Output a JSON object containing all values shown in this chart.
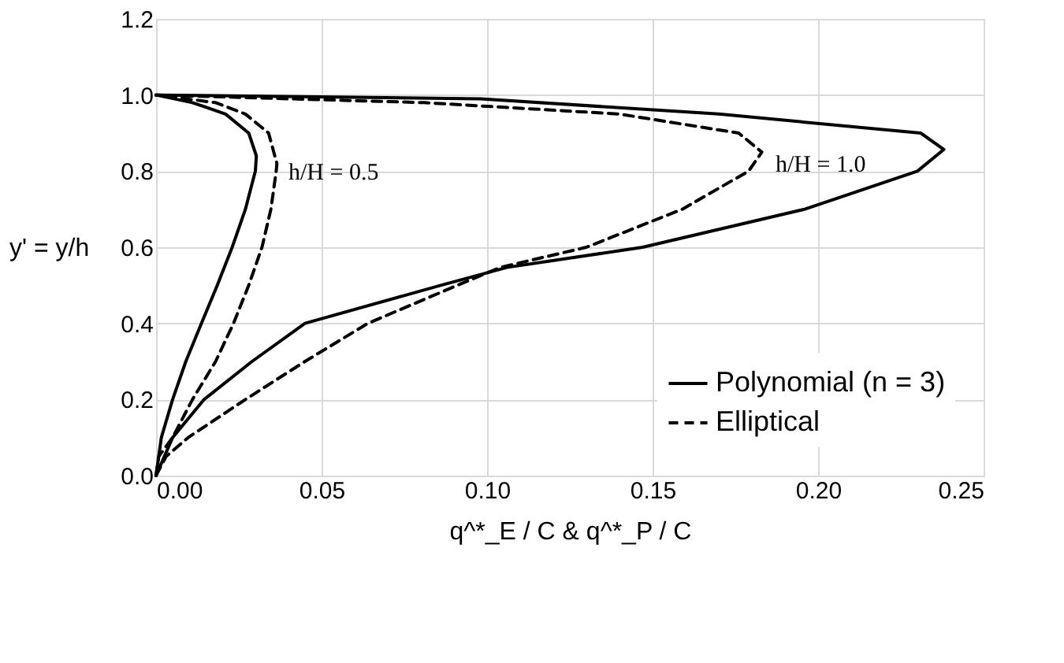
{
  "chart_data": {
    "type": "line",
    "xlabel": "q^*_E / C & q^*_P / C",
    "ylabel": "y' = y/h",
    "xlim": [
      0,
      0.25
    ],
    "xticks": [
      {
        "value": 0,
        "label": "0.00"
      },
      0.05,
      {
        "value": 0.1,
        "label": "0.10"
      },
      0.15,
      {
        "value": 0.2,
        "label": "0.20"
      },
      0.25
    ],
    "ylim": [
      0,
      1.2
    ],
    "yticks": [
      {
        "value": 0,
        "label": "0.0"
      },
      0.2,
      0.4,
      0.6,
      0.8,
      {
        "value": 1,
        "label": "1.0"
      },
      1.2
    ],
    "grid": true,
    "legend": "bottom right",
    "series": [
      {
        "name": "Polynomial (n = 3)",
        "color": "#000000",
        "line_style": "solid",
        "x": [
          0,
          0.005,
          0.0145,
          0.029,
          0.045,
          0.086,
          0.106,
          0.147,
          0.196,
          0.23,
          0.238,
          0.231,
          0.17,
          0.098,
          0
        ],
        "values": [
          0,
          0.1,
          0.2,
          0.3,
          0.4,
          0.5,
          0.547,
          0.6,
          0.7,
          0.8,
          0.857,
          0.9,
          0.95,
          0.99,
          1
        ]
      },
      {
        "name": "Elliptical",
        "color": "#000000",
        "line_style": "dashed",
        "x": [
          0,
          0.003,
          0.0097,
          0.027,
          0.045,
          0.064,
          0.091,
          0.104,
          0.13,
          0.159,
          0.179,
          0.183,
          0.176,
          0.14,
          0.081,
          0
        ],
        "values": [
          0,
          0.05,
          0.1,
          0.2,
          0.3,
          0.4,
          0.5,
          0.547,
          0.6,
          0.7,
          0.8,
          0.85,
          0.9,
          0.95,
          0.98,
          1
        ]
      },
      {
        "color": "#000000",
        "line_style": "solid",
        "x": [
          0,
          0.0016,
          0.005,
          0.009,
          0.0137,
          0.0185,
          0.023,
          0.027,
          0.03,
          0.0303,
          0.028,
          0.021,
          0.011,
          0
        ],
        "values": [
          0,
          0.1,
          0.2,
          0.3,
          0.4,
          0.5,
          0.6,
          0.7,
          0.8,
          0.84,
          0.9,
          0.95,
          0.98,
          1
        ]
      },
      {
        "color": "#000000",
        "line_style": "dashed",
        "x": [
          0,
          0.0008,
          0.005,
          0.011,
          0.018,
          0.0234,
          0.028,
          0.032,
          0.0347,
          0.0363,
          0.0365,
          0.034,
          0.027,
          0.018,
          0
        ],
        "values": [
          0,
          0.05,
          0.1,
          0.2,
          0.3,
          0.4,
          0.5,
          0.6,
          0.7,
          0.8,
          0.82,
          0.9,
          0.95,
          0.98,
          1
        ]
      }
    ],
    "annotations": [
      "h/H = 0.5",
      "h/H = 1.0"
    ]
  }
}
